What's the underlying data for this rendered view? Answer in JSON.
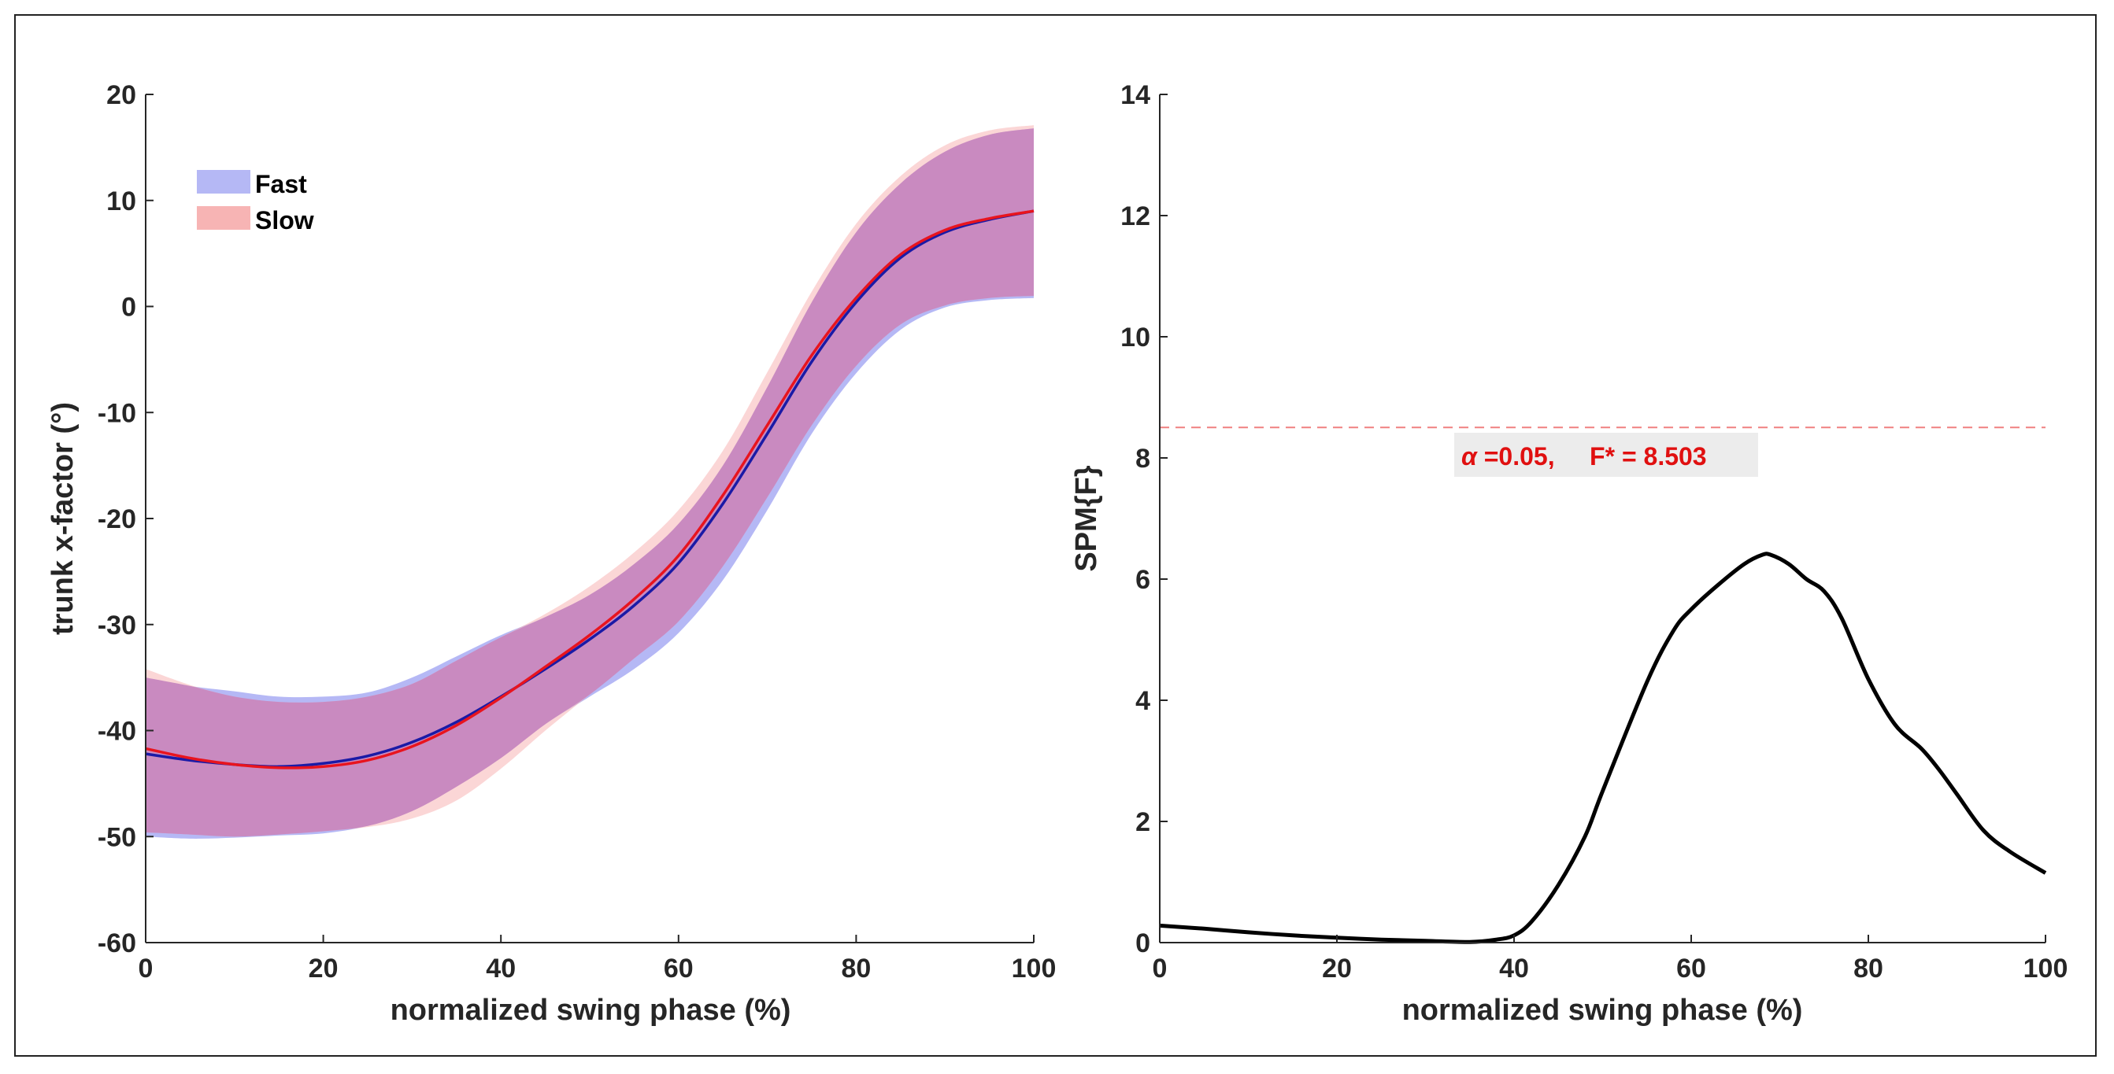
{
  "chart_data": [
    {
      "type": "line",
      "xlabel": "normalized swing phase (%)",
      "ylabel": "trunk x-factor (°)",
      "xlim": [
        0,
        100
      ],
      "ylim": [
        -60,
        20
      ],
      "xticks": [
        "0",
        "20",
        "40",
        "60",
        "80",
        "100"
      ],
      "yticks": [
        "-60",
        "-50",
        "-40",
        "-30",
        "-20",
        "-10",
        "0",
        "10",
        "20"
      ],
      "legend": {
        "placement": "top-left",
        "entries": [
          "Fast",
          "Slow"
        ]
      },
      "x": [
        0,
        5,
        10,
        15,
        20,
        25,
        30,
        35,
        40,
        45,
        50,
        55,
        60,
        65,
        70,
        75,
        80,
        85,
        90,
        95,
        100
      ],
      "series": [
        {
          "name": "Fast",
          "color": "#1a1aa6",
          "band_color": "#b5b8f5",
          "mean": [
            -42.2,
            -42.8,
            -43.2,
            -43.4,
            -43.1,
            -42.4,
            -41.1,
            -39.2,
            -36.8,
            -34.2,
            -31.4,
            -28.2,
            -24.2,
            -18.6,
            -12.0,
            -5.2,
            0.4,
            4.6,
            7.0,
            8.2,
            9.0
          ],
          "upper": [
            -35.0,
            -35.8,
            -36.3,
            -36.8,
            -36.8,
            -36.4,
            -35.0,
            -33.0,
            -31.0,
            -29.3,
            -27.2,
            -24.3,
            -20.5,
            -15.0,
            -7.6,
            0.4,
            7.0,
            11.6,
            14.6,
            16.2,
            16.8
          ],
          "lower": [
            -50.0,
            -50.2,
            -50.1,
            -49.9,
            -49.7,
            -49.0,
            -47.6,
            -45.3,
            -42.6,
            -39.4,
            -36.8,
            -34.2,
            -30.8,
            -25.8,
            -19.2,
            -12.0,
            -6.3,
            -2.2,
            -0.1,
            0.6,
            0.8
          ]
        },
        {
          "name": "Slow",
          "color": "#e8141e",
          "band_color": "#f7b4b4",
          "mean": [
            -41.7,
            -42.6,
            -43.2,
            -43.5,
            -43.4,
            -42.8,
            -41.5,
            -39.5,
            -36.9,
            -34.0,
            -31.0,
            -27.6,
            -23.5,
            -17.8,
            -11.2,
            -4.6,
            0.8,
            4.9,
            7.2,
            8.3,
            9.0
          ],
          "upper": [
            -34.2,
            -35.7,
            -36.8,
            -37.3,
            -37.3,
            -36.8,
            -35.6,
            -33.4,
            -31.2,
            -29.0,
            -26.4,
            -23.2,
            -19.2,
            -13.6,
            -6.2,
            1.4,
            7.8,
            12.3,
            15.2,
            16.6,
            17.1
          ],
          "lower": [
            -49.6,
            -49.8,
            -50.0,
            -49.8,
            -49.5,
            -49.1,
            -48.3,
            -46.6,
            -43.6,
            -40.0,
            -36.6,
            -33.2,
            -29.7,
            -24.5,
            -18.0,
            -11.2,
            -5.6,
            -1.7,
            0.1,
            0.8,
            1.0
          ]
        }
      ]
    },
    {
      "type": "line",
      "xlabel": "normalized swing phase (%)",
      "ylabel": "SPM{F}",
      "xlim": [
        0,
        100
      ],
      "ylim": [
        0,
        14
      ],
      "xticks": [
        "0",
        "20",
        "40",
        "60",
        "80",
        "100"
      ],
      "yticks": [
        "0",
        "2",
        "4",
        "6",
        "8",
        "10",
        "12",
        "14"
      ],
      "threshold": {
        "value": 8.503,
        "color": "#f08080",
        "label_alpha": "α",
        "label_rest": " =0.05,     F* = 8.503"
      },
      "x": [
        0,
        5,
        10,
        15,
        20,
        25,
        30,
        35,
        38,
        40,
        42,
        45,
        48,
        50,
        55,
        58,
        60,
        63,
        66,
        68,
        69,
        71,
        73,
        75,
        77,
        80,
        83,
        86,
        88,
        90,
        93,
        96,
        100
      ],
      "series": [
        {
          "name": "SPM{F}",
          "color": "#000000",
          "values": [
            0.28,
            0.23,
            0.17,
            0.12,
            0.08,
            0.05,
            0.03,
            0.01,
            0.05,
            0.12,
            0.35,
            0.95,
            1.75,
            2.5,
            4.3,
            5.15,
            5.5,
            5.9,
            6.25,
            6.4,
            6.4,
            6.25,
            6.0,
            5.8,
            5.35,
            4.35,
            3.6,
            3.2,
            2.85,
            2.45,
            1.85,
            1.5,
            1.15
          ]
        }
      ]
    }
  ]
}
